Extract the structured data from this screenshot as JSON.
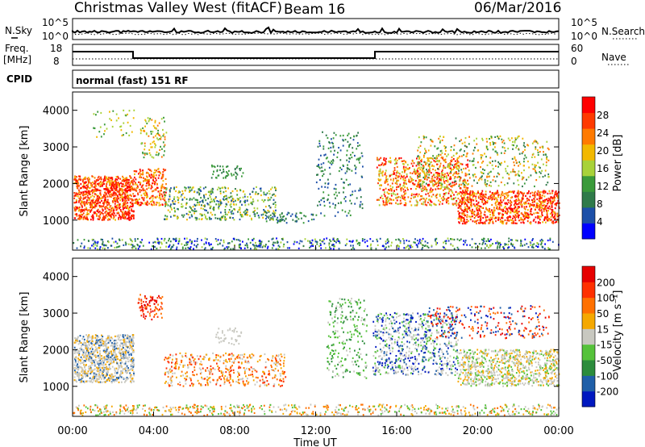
{
  "header": {
    "station": "Christmas Valley West (fitACF)",
    "beam": "Beam 16",
    "date": "06/Mar/2016"
  },
  "status_panels": {
    "nsky_label": "N.Sky",
    "nsky_ticks": [
      "10^5",
      "10^0"
    ],
    "nsearch_label": "N.Search",
    "nsearch_ticks": [
      "10^5",
      "10^0"
    ],
    "freq_label_line1": "Freq.",
    "freq_label_line2": "[MHz]",
    "freq_ticks": [
      "18",
      "8"
    ],
    "nave_label": "Nave",
    "nave_ticks": [
      "60",
      "0"
    ],
    "cpid_label": "CPID",
    "cpid_text": "normal (fast) 151 RF"
  },
  "colors": {
    "power": [
      "#0000ff",
      "#1c4fa8",
      "#2f7a4a",
      "#3a9a3a",
      "#a8d23a",
      "#f2b800",
      "#ff7a00",
      "#ff3a00",
      "#ff0000"
    ],
    "velocity": [
      "#0018c0",
      "#1f5fa8",
      "#2c8c3c",
      "#55c23a",
      "#c8c8c0",
      "#f5a800",
      "#ff7000",
      "#ff3000",
      "#e60000"
    ],
    "line": "#000000"
  },
  "chart_data": [
    {
      "type": "heatmap",
      "panel": "power",
      "xlabel": "",
      "ylabel": "Slant Range [km]",
      "x_ticks": [
        "00:00",
        "04:00",
        "08:00",
        "12:00",
        "16:00",
        "20:00",
        "00:00"
      ],
      "y_ticks": [
        "1000",
        "2000",
        "3000",
        "4000"
      ],
      "xlim_hours": [
        0,
        24
      ],
      "ylim_km": [
        180,
        4500
      ],
      "colorbar_label": "Power [dB]",
      "colorbar_ticks": [
        "28",
        "24",
        "20",
        "16",
        "12",
        "8",
        "4"
      ]
    },
    {
      "type": "heatmap",
      "panel": "velocity",
      "xlabel": "Time UT",
      "ylabel": "Slant Range [km]",
      "x_ticks": [
        "00:00",
        "04:00",
        "08:00",
        "12:00",
        "16:00",
        "20:00",
        "00:00"
      ],
      "y_ticks": [
        "1000",
        "2000",
        "3000",
        "4000"
      ],
      "xlim_hours": [
        0,
        24
      ],
      "ylim_km": [
        180,
        4500
      ],
      "colorbar_label": "Velocity [m s⁻¹]",
      "colorbar_ticks": [
        "200",
        "100",
        "50",
        "15",
        "-15",
        "-50",
        "-100",
        "-200"
      ]
    }
  ]
}
